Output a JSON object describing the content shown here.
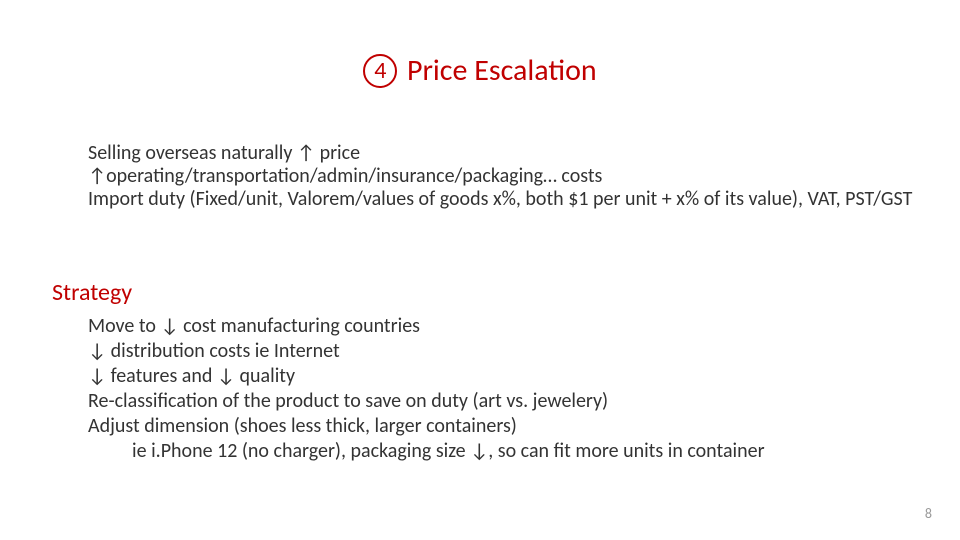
{
  "colors": {
    "accent": "#c00000",
    "text": "#333333",
    "pagenum": "#9a9a9a",
    "background": "#ffffff"
  },
  "title": {
    "number": "4",
    "text": "Price Escalation",
    "fontsize": 30
  },
  "body": {
    "lines": [
      "Selling overseas naturally ↑ price",
      "↑operating/transportation/admin/insurance/packaging… costs",
      "Import duty (Fixed/unit, Valorem/values of goods x%, both $1 per unit + x% of its value), VAT, PST/GST"
    ],
    "fontsize": 20
  },
  "strategy": {
    "heading": "Strategy",
    "heading_fontsize": 24,
    "lines": [
      "Move to ↓ cost manufacturing countries",
      "↓ distribution costs ie Internet",
      "↓ features and ↓ quality",
      "Re-classification of the product to save on duty (art vs. jewelery)",
      "Adjust dimension (shoes less thick, larger containers)"
    ],
    "sublines": [
      "ie i.Phone 12 (no charger), packaging size ↓, so can fit more units in container"
    ],
    "fontsize": 20
  },
  "page_number": "8"
}
